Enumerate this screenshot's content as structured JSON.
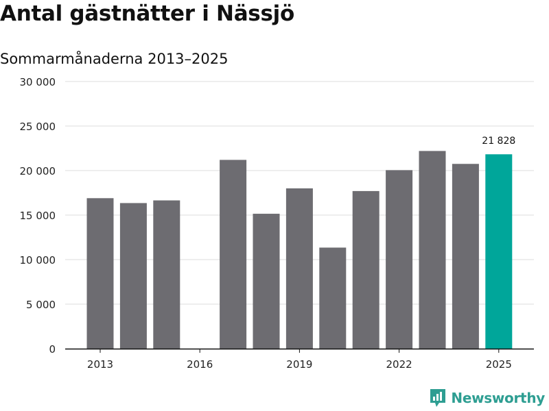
{
  "title": "Antal gästnätter i Nässjö",
  "subtitle": "Sommarmånaderna 2013–2025",
  "brand": {
    "name": "Newsworthy",
    "icon": "newsworthy-logo-icon",
    "color": "#2e9e92"
  },
  "colors": {
    "bar": "#6d6c71",
    "highlight": "#00a69a",
    "grid": "#dcdcdc",
    "axis": "#111111"
  },
  "chart_data": {
    "type": "bar",
    "title": "Antal gästnätter i Nässjö",
    "subtitle": "Sommarmånaderna 2013–2025",
    "xlabel": "",
    "ylabel": "",
    "categories": [
      "2013",
      "2014",
      "2015",
      "2016",
      "2017",
      "2018",
      "2019",
      "2020",
      "2021",
      "2022",
      "2023",
      "2024",
      "2025"
    ],
    "values": [
      16900,
      16350,
      16650,
      null,
      21200,
      15150,
      18000,
      11350,
      17700,
      20050,
      22200,
      20750,
      21828
    ],
    "highlight_category": "2025",
    "data_labels": [
      {
        "category": "2025",
        "text": "21 828"
      }
    ],
    "x_tick_labels": [
      "2013",
      "2016",
      "2019",
      "2022",
      "2025"
    ],
    "y_tick_labels": [
      "0",
      "5 000",
      "10 000",
      "15 000",
      "20 000",
      "25 000",
      "30 000"
    ],
    "y_ticks": [
      0,
      5000,
      10000,
      15000,
      20000,
      25000,
      30000
    ],
    "ylim": [
      0,
      30000
    ],
    "grid": true,
    "legend": "none"
  }
}
